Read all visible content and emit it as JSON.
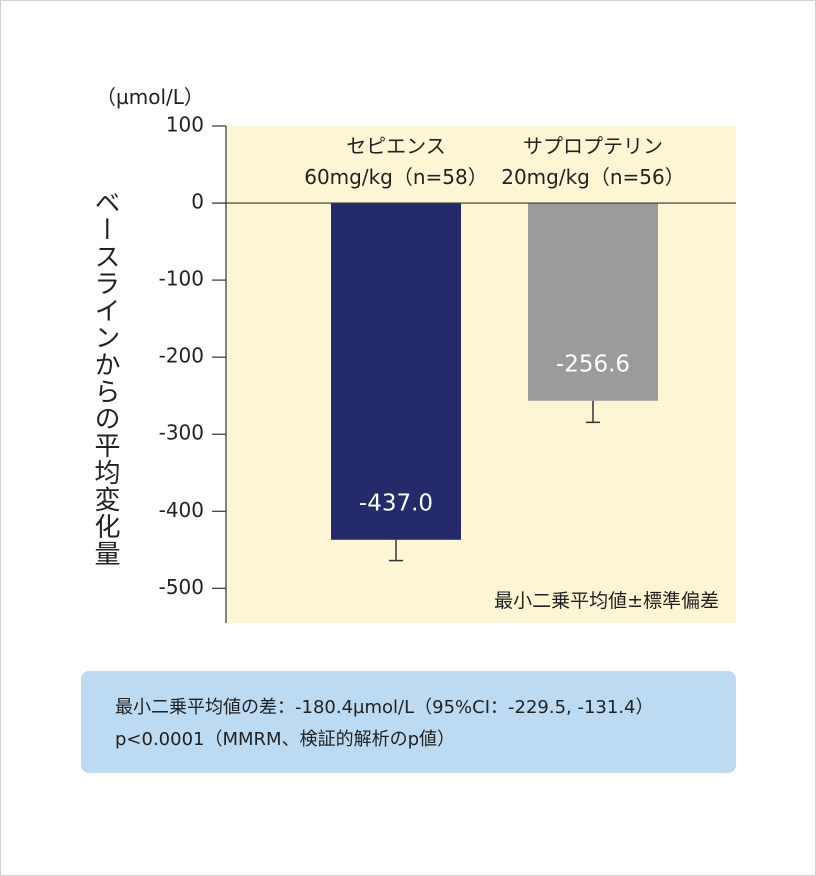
{
  "chart_data": {
    "type": "bar",
    "y_unit": "（µmol/L）",
    "y_axis_label": "ベースラインからの平均変化量",
    "categories": [
      "セピエンス\n60mg/kg（n=58）",
      "サプロプテリン\n20mg/kg（n=56）"
    ],
    "values": [
      -437.0,
      -256.6
    ],
    "value_labels": [
      "-437.0",
      "-256.6"
    ],
    "errors": [
      27,
      28
    ],
    "colors": [
      "#252a6b",
      "#9b9b9b"
    ],
    "ylim": [
      -545,
      100
    ],
    "yticks": [
      100,
      0,
      -100,
      -200,
      -300,
      -400,
      -500
    ],
    "annotation": "最小二乗平均値±標準偏差"
  },
  "note": {
    "lines": [
      "最小二乗平均値の差：-180.4µmol/L（95%CI：-229.5, -131.4）",
      "p<0.0001（MMRM、検証的解析のp値）"
    ]
  }
}
